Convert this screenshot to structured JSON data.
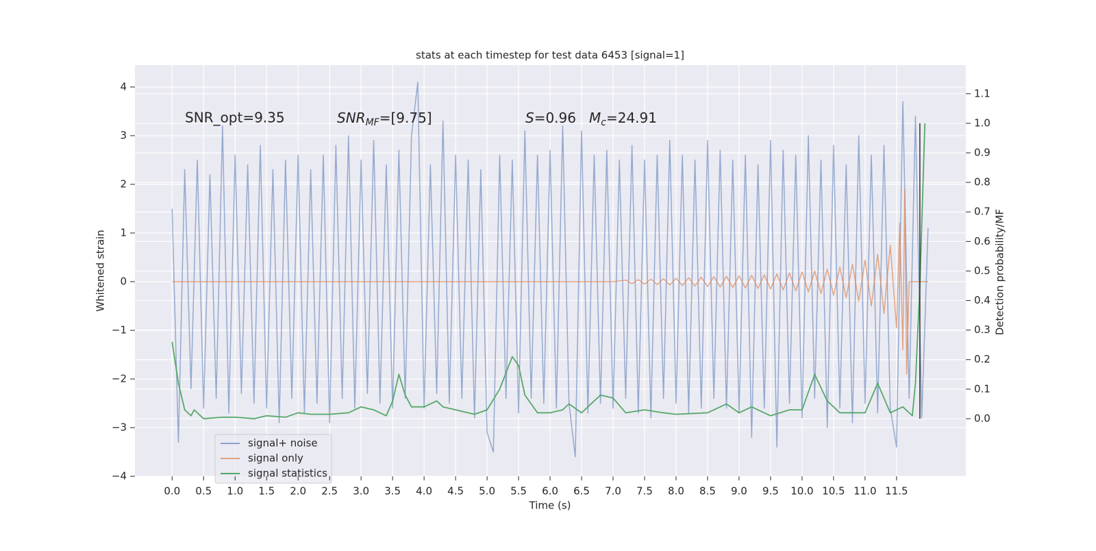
{
  "chart_data": {
    "type": "line",
    "title": "stats at each timestep for test data 6453 [signal=1]",
    "xlabel": "Time (s)",
    "ylabel": "Whitened strain",
    "y2label": "Detection probability/MF",
    "xlim": [
      -0.59,
      12.6
    ],
    "ylim": [
      -4,
      4.45
    ],
    "y2lim": [
      -0.195,
      1.197
    ],
    "xticks": [
      {
        "value": 0,
        "label": "0.0"
      },
      0.5,
      {
        "value": 1,
        "label": "1.0"
      },
      1.5,
      {
        "value": 2,
        "label": "2.0"
      },
      2.5,
      {
        "value": 3,
        "label": "3.0"
      },
      3.5,
      {
        "value": 4,
        "label": "4.0"
      },
      4.5,
      {
        "value": 5,
        "label": "5.0"
      },
      5.5,
      {
        "value": 6,
        "label": "6.0"
      },
      6.5,
      {
        "value": 7,
        "label": "7.0"
      },
      7.5,
      {
        "value": 8,
        "label": "8.0"
      },
      8.5,
      {
        "value": 9,
        "label": "9.0"
      },
      9.5,
      {
        "value": 10,
        "label": "10.0"
      },
      10.5,
      {
        "value": 11,
        "label": "11.0"
      },
      11.5
    ],
    "yticks": [
      {
        "value": -4,
        "label": "−4"
      },
      {
        "value": -3,
        "label": "−3"
      },
      {
        "value": -2,
        "label": "−2"
      },
      {
        "value": -1,
        "label": "−1"
      },
      0,
      1,
      2,
      3,
      4
    ],
    "y2ticks": [
      {
        "value": 0,
        "label": "0.0"
      },
      0.1,
      0.2,
      0.3,
      0.4,
      0.5,
      0.6,
      0.7,
      0.8,
      0.9,
      {
        "value": 1,
        "label": "1.0"
      },
      1.1
    ],
    "grid": true,
    "legend": "lower left",
    "annotations": [
      {
        "text": "SNR_opt=9.35"
      },
      {
        "base": "SNR",
        "sub": "MF",
        "rest": "=[9.75]"
      },
      {
        "base": "S",
        "rest": "=0.96"
      },
      {
        "base": "M",
        "sub": "c",
        "rest": "=24.91"
      }
    ],
    "series": [
      {
        "name": "signal+ noise",
        "color": "#4c72b0",
        "axis": "y",
        "x": [
          0.0,
          0.1,
          0.2,
          0.3,
          0.4,
          0.5,
          0.6,
          0.7,
          0.8,
          0.9,
          1.0,
          1.1,
          1.2,
          1.3,
          1.4,
          1.5,
          1.6,
          1.7,
          1.8,
          1.9,
          2.0,
          2.1,
          2.2,
          2.3,
          2.4,
          2.5,
          2.6,
          2.7,
          2.8,
          2.9,
          3.0,
          3.1,
          3.2,
          3.3,
          3.4,
          3.5,
          3.6,
          3.7,
          3.8,
          3.9,
          4.0,
          4.1,
          4.2,
          4.3,
          4.4,
          4.5,
          4.6,
          4.7,
          4.8,
          4.9,
          5.0,
          5.1,
          5.2,
          5.3,
          5.4,
          5.5,
          5.6,
          5.7,
          5.8,
          5.9,
          6.0,
          6.1,
          6.2,
          6.3,
          6.4,
          6.5,
          6.6,
          6.7,
          6.8,
          6.9,
          7.0,
          7.1,
          7.2,
          7.3,
          7.4,
          7.5,
          7.6,
          7.7,
          7.8,
          7.9,
          8.0,
          8.1,
          8.2,
          8.3,
          8.4,
          8.5,
          8.6,
          8.7,
          8.8,
          8.9,
          9.0,
          9.1,
          9.2,
          9.3,
          9.4,
          9.5,
          9.6,
          9.7,
          9.8,
          9.9,
          10.0,
          10.1,
          10.2,
          10.3,
          10.4,
          10.5,
          10.6,
          10.7,
          10.8,
          10.9,
          11.0,
          11.1,
          11.2,
          11.3,
          11.4,
          11.5,
          11.6,
          11.7,
          11.8,
          11.9,
          12.0
        ],
        "values": [
          1.5,
          -3.3,
          2.3,
          -2.2,
          2.5,
          -2.6,
          2.2,
          -2.4,
          3.2,
          -2.7,
          2.6,
          -2.3,
          2.4,
          -2.5,
          2.8,
          -2.6,
          2.3,
          -2.9,
          2.5,
          -2.4,
          2.6,
          -2.7,
          2.3,
          -2.5,
          2.6,
          -2.9,
          2.8,
          -2.4,
          3.0,
          -2.6,
          2.5,
          -2.3,
          2.9,
          -2.5,
          2.4,
          -2.6,
          2.7,
          -2.4,
          3.0,
          4.1,
          -2.6,
          2.4,
          -2.3,
          3.3,
          -2.5,
          2.6,
          -2.4,
          2.5,
          -2.8,
          2.3,
          -3.1,
          -3.5,
          2.6,
          -2.4,
          2.5,
          -2.7,
          3.1,
          -2.4,
          2.6,
          -2.5,
          2.7,
          -2.6,
          3.2,
          -2.5,
          -3.6,
          3.1,
          -2.7,
          2.6,
          -2.5,
          2.7,
          -2.6,
          2.5,
          -2.4,
          2.8,
          -2.7,
          2.5,
          -2.8,
          2.6,
          -2.4,
          2.9,
          -2.5,
          2.6,
          -2.7,
          2.5,
          -2.6,
          2.9,
          -2.4,
          2.7,
          -2.6,
          2.5,
          -2.7,
          2.6,
          -3.2,
          2.4,
          -2.6,
          2.9,
          -3.4,
          2.7,
          -2.5,
          2.6,
          -2.8,
          3.0,
          -2.4,
          2.5,
          -3.0,
          2.8,
          -2.6,
          2.4,
          -2.9,
          3.0,
          -2.5,
          2.6,
          -2.7,
          2.8,
          -2.6,
          -3.4,
          3.7,
          -2.4,
          3.4,
          -2.8,
          1.1
        ]
      },
      {
        "name": "signal only",
        "color": "#dd8452",
        "axis": "y",
        "x": [
          0.0,
          7.0,
          7.2,
          7.3,
          7.4,
          7.5,
          7.6,
          7.7,
          7.8,
          7.9,
          8.0,
          8.1,
          8.2,
          8.3,
          8.4,
          8.5,
          8.6,
          8.7,
          8.8,
          8.9,
          9.0,
          9.1,
          9.2,
          9.3,
          9.4,
          9.5,
          9.6,
          9.7,
          9.8,
          9.9,
          10.0,
          10.1,
          10.2,
          10.3,
          10.4,
          10.5,
          10.6,
          10.7,
          10.8,
          10.9,
          11.0,
          11.1,
          11.2,
          11.3,
          11.4,
          11.5,
          11.55,
          11.6,
          11.63,
          11.66,
          11.7,
          12.0
        ],
        "values": [
          0,
          0,
          0.03,
          -0.04,
          0.04,
          -0.05,
          0.05,
          -0.06,
          0.06,
          -0.07,
          0.07,
          -0.08,
          0.08,
          -0.09,
          0.09,
          -0.1,
          0.1,
          -0.11,
          0.11,
          -0.12,
          0.12,
          -0.13,
          0.13,
          -0.14,
          0.14,
          -0.15,
          0.16,
          -0.17,
          0.18,
          -0.19,
          0.2,
          -0.21,
          0.22,
          -0.24,
          0.26,
          -0.28,
          0.3,
          -0.33,
          0.36,
          -0.4,
          0.44,
          -0.5,
          0.56,
          -0.65,
          0.75,
          -0.95,
          1.2,
          -1.4,
          1.9,
          -1.9,
          0,
          0
        ]
      },
      {
        "name": "signal statistics",
        "color": "#55a868",
        "axis": "y2",
        "x": [
          0.0,
          0.1,
          0.2,
          0.3,
          0.35,
          0.5,
          0.8,
          1.0,
          1.3,
          1.5,
          1.8,
          2.0,
          2.2,
          2.5,
          2.8,
          3.0,
          3.2,
          3.4,
          3.5,
          3.6,
          3.7,
          3.8,
          4.0,
          4.2,
          4.3,
          4.5,
          4.8,
          5.0,
          5.2,
          5.4,
          5.5,
          5.6,
          5.8,
          6.0,
          6.2,
          6.3,
          6.5,
          6.7,
          6.8,
          7.0,
          7.2,
          7.5,
          7.8,
          8.0,
          8.5,
          8.8,
          9.0,
          9.2,
          9.5,
          9.8,
          10.0,
          10.2,
          10.4,
          10.6,
          11.0,
          11.2,
          11.4,
          11.6,
          11.75,
          11.8,
          11.87,
          11.95
        ],
        "values": [
          0.26,
          0.12,
          0.03,
          0.01,
          0.03,
          0.0,
          0.005,
          0.005,
          0.0,
          0.01,
          0.005,
          0.02,
          0.015,
          0.015,
          0.02,
          0.04,
          0.03,
          0.01,
          0.06,
          0.15,
          0.08,
          0.04,
          0.04,
          0.06,
          0.04,
          0.03,
          0.015,
          0.03,
          0.1,
          0.21,
          0.18,
          0.08,
          0.02,
          0.02,
          0.03,
          0.05,
          0.02,
          0.06,
          0.08,
          0.07,
          0.02,
          0.03,
          0.02,
          0.015,
          0.02,
          0.05,
          0.02,
          0.04,
          0.01,
          0.03,
          0.03,
          0.15,
          0.06,
          0.02,
          0.02,
          0.12,
          0.02,
          0.04,
          0.01,
          0.12,
          0.45,
          1.0
        ]
      }
    ],
    "vline": {
      "x": 11.87,
      "y2": [
        0,
        1
      ],
      "color": "#333333"
    }
  }
}
